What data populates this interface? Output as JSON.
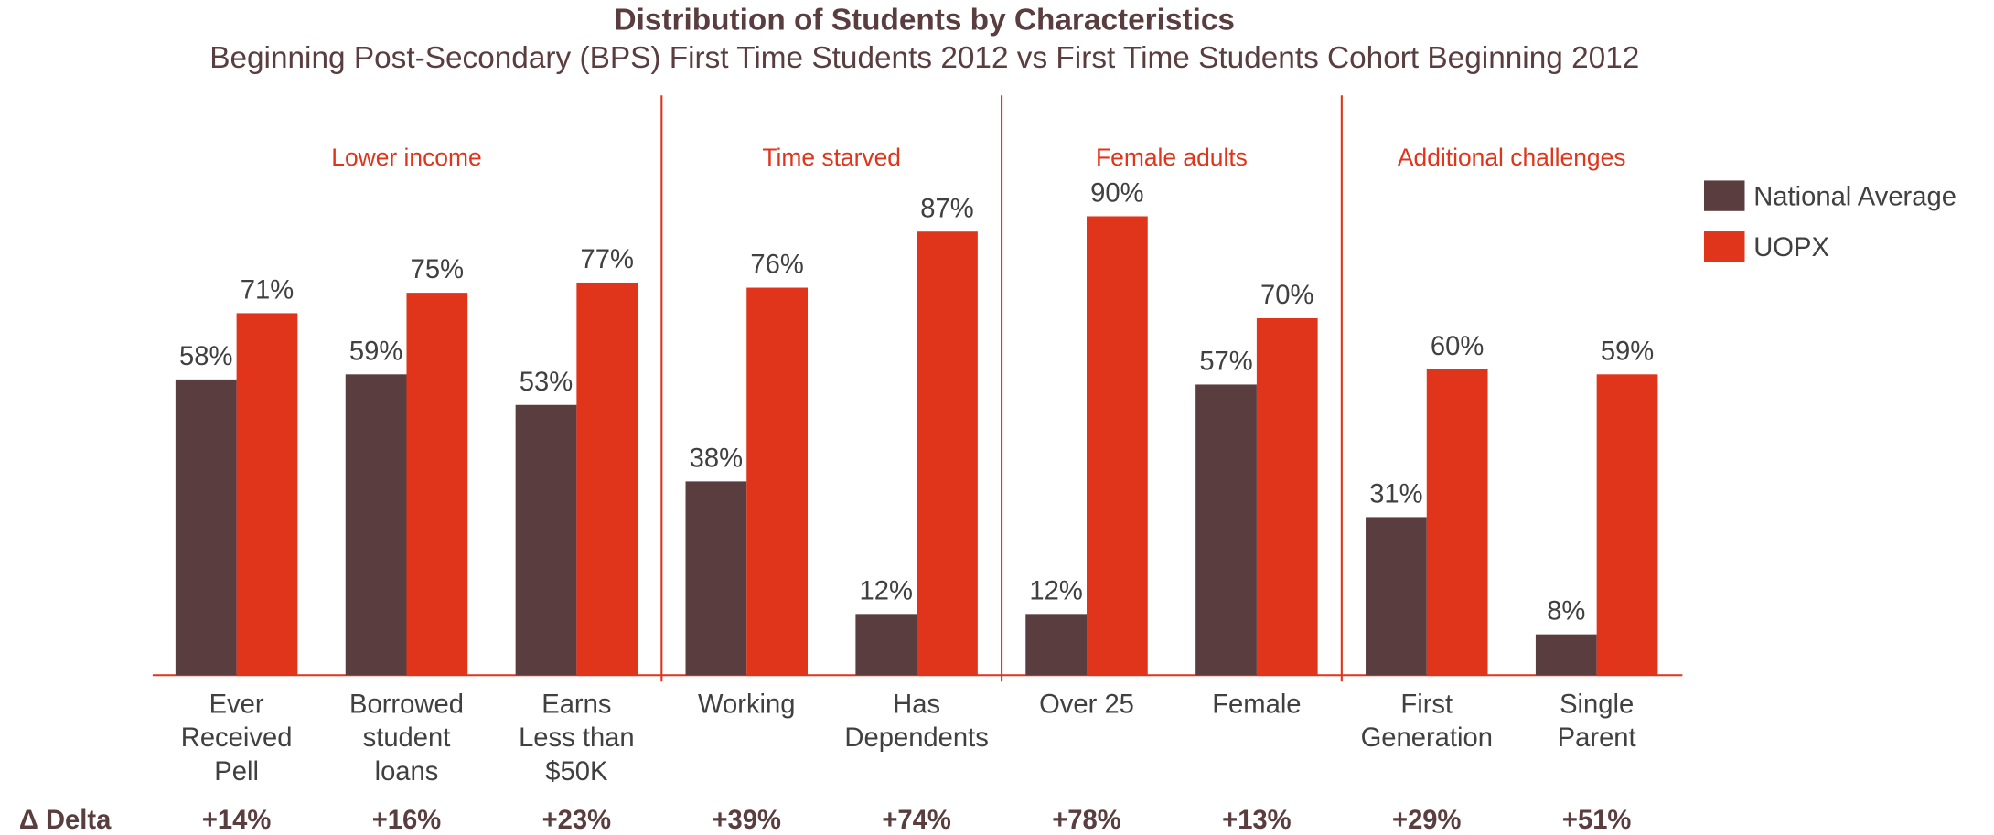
{
  "chart_data": {
    "type": "bar",
    "title": "Distribution of Students by Characteristics",
    "subtitle": "Beginning Post-Secondary (BPS) First Time Students 2012 vs First Time Students Cohort Beginning 2012",
    "categories": [
      [
        "Ever",
        "Received",
        "Pell"
      ],
      [
        "Borrowed",
        "student",
        "loans"
      ],
      [
        "Earns",
        "Less than",
        "$50K"
      ],
      [
        "Working"
      ],
      [
        "Has",
        "Dependents"
      ],
      [
        "Over 25"
      ],
      [
        "Female"
      ],
      [
        "First",
        "Generation"
      ],
      [
        "Single",
        "Parent"
      ]
    ],
    "groups": [
      {
        "label": "Lower income",
        "size": 3
      },
      {
        "label": "Time starved",
        "size": 2
      },
      {
        "label": "Female adults",
        "size": 2
      },
      {
        "label": "Additional challenges",
        "size": 2
      }
    ],
    "series": [
      {
        "name": "National Average",
        "color": "#5a3d3e",
        "values": [
          58,
          59,
          53,
          38,
          12,
          12,
          57,
          31,
          8
        ],
        "value_labels": [
          "58%",
          "59%",
          "53%",
          "38%",
          "12%",
          "12%",
          "57%",
          "31%",
          "8%"
        ]
      },
      {
        "name": "UOPX",
        "color": "#e0341b",
        "values": [
          71,
          75,
          77,
          76,
          87,
          90,
          70,
          60,
          59
        ],
        "value_labels": [
          "71%",
          "75%",
          "77%",
          "76%",
          "87%",
          "90%",
          "70%",
          "60%",
          "59%"
        ]
      }
    ],
    "delta_label": "Δ Delta",
    "deltas": [
      "+14%",
      "+16%",
      "+23%",
      "+39%",
      "+74%",
      "+78%",
      "+13%",
      "+29%",
      "+51%"
    ],
    "ylim": [
      0,
      100
    ]
  }
}
